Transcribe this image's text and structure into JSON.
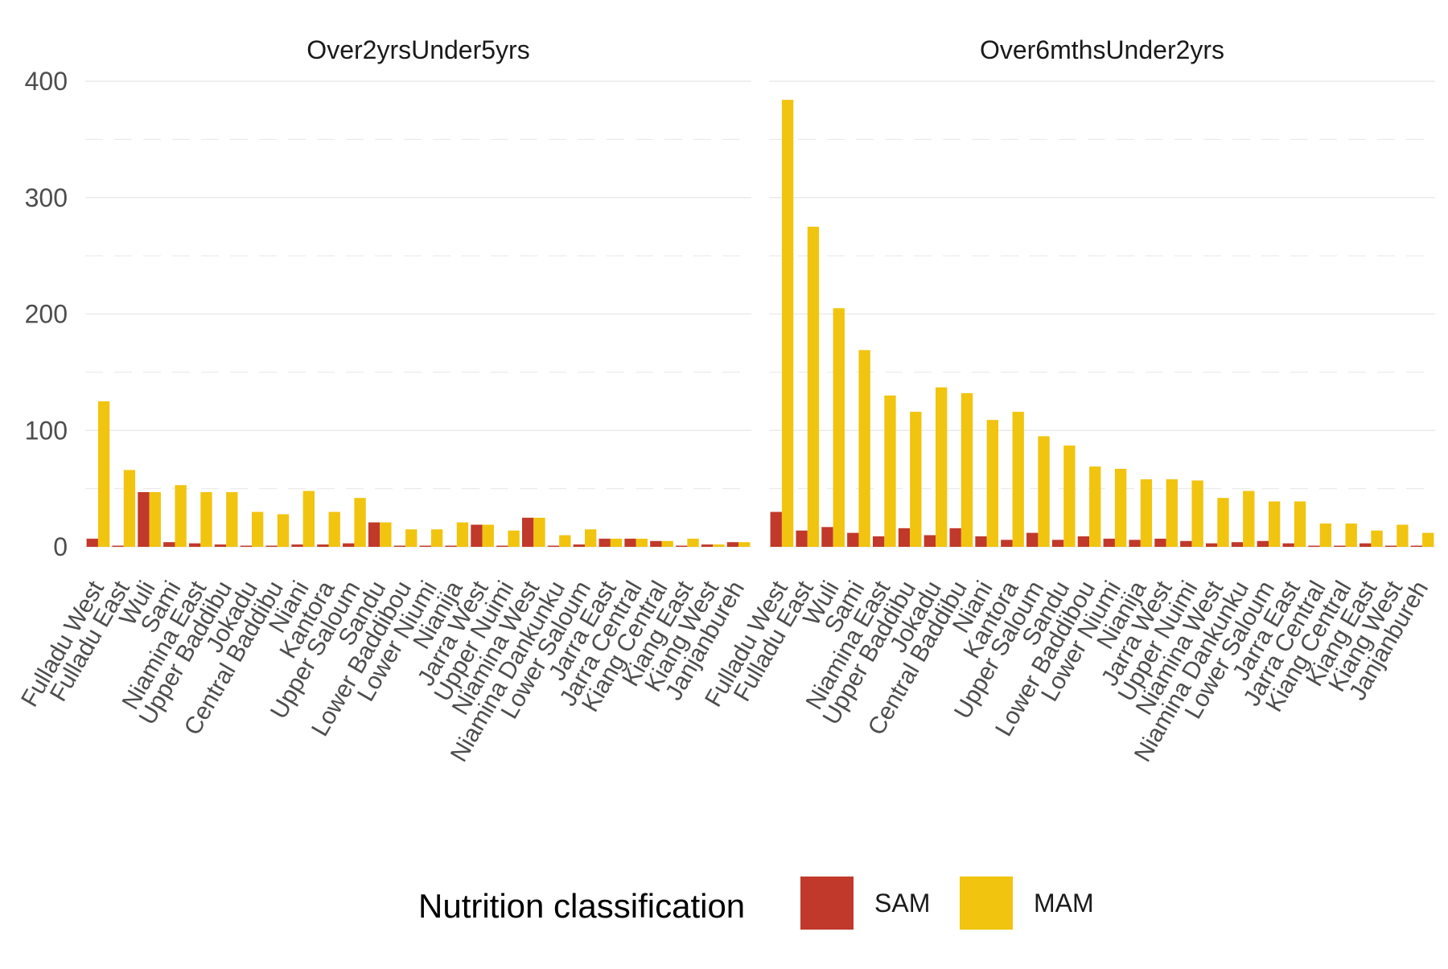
{
  "colors": {
    "SAM": "#c0392b",
    "MAM": "#f1c40f"
  },
  "chart_data": {
    "type": "bar",
    "layout": "grouped, faceted by age group",
    "ylim": [
      0,
      400
    ],
    "y_ticks": [
      "0",
      "100",
      "200",
      "300",
      "400"
    ],
    "grid": "horizontal major and minor",
    "legend": {
      "title": "Nutrition classification",
      "position": "bottom",
      "entries": [
        "SAM",
        "MAM"
      ]
    },
    "categories": [
      "Fulladu West",
      "Fulladu East",
      "Wuli",
      "Sami",
      "Niamina East",
      "Upper Baddibu",
      "Jokadu",
      "Central Baddibu",
      "Niani",
      "Kantora",
      "Upper Saloum",
      "Sandu",
      "Lower Baddibou",
      "Lower Niumi",
      "Nianija",
      "Jarra West",
      "Upper Nuimi",
      "Niamina West",
      "Niamina Dankunku",
      "Lower Saloum",
      "Jarra East",
      "Jarra Central",
      "Kiang Central",
      "Kiang East",
      "Kiang West",
      "Janjanbureh"
    ],
    "facets": [
      {
        "title": "Over2yrsUnder5yrs",
        "series": [
          {
            "name": "SAM",
            "values": [
              7,
              1,
              47,
              4,
              3,
              2,
              1,
              1,
              2,
              2,
              3,
              21,
              1,
              1,
              1,
              19,
              1,
              25,
              1,
              2,
              7,
              7,
              5,
              1,
              2,
              4
            ]
          },
          {
            "name": "MAM",
            "values": [
              125,
              66,
              47,
              53,
              47,
              47,
              30,
              28,
              48,
              30,
              42,
              21,
              15,
              15,
              21,
              19,
              14,
              25,
              10,
              15,
              7,
              7,
              5,
              7,
              2,
              4
            ]
          }
        ]
      },
      {
        "title": "Over6mthsUnder2yrs",
        "series": [
          {
            "name": "SAM",
            "values": [
              30,
              14,
              17,
              12,
              9,
              16,
              10,
              16,
              9,
              6,
              12,
              6,
              9,
              7,
              6,
              7,
              5,
              3,
              4,
              5,
              3,
              1,
              1,
              3,
              1,
              1
            ]
          },
          {
            "name": "MAM",
            "values": [
              384,
              275,
              205,
              169,
              130,
              116,
              137,
              132,
              109,
              116,
              95,
              87,
              69,
              67,
              58,
              58,
              57,
              42,
              48,
              39,
              39,
              20,
              20,
              14,
              19,
              12
            ]
          }
        ]
      }
    ]
  }
}
